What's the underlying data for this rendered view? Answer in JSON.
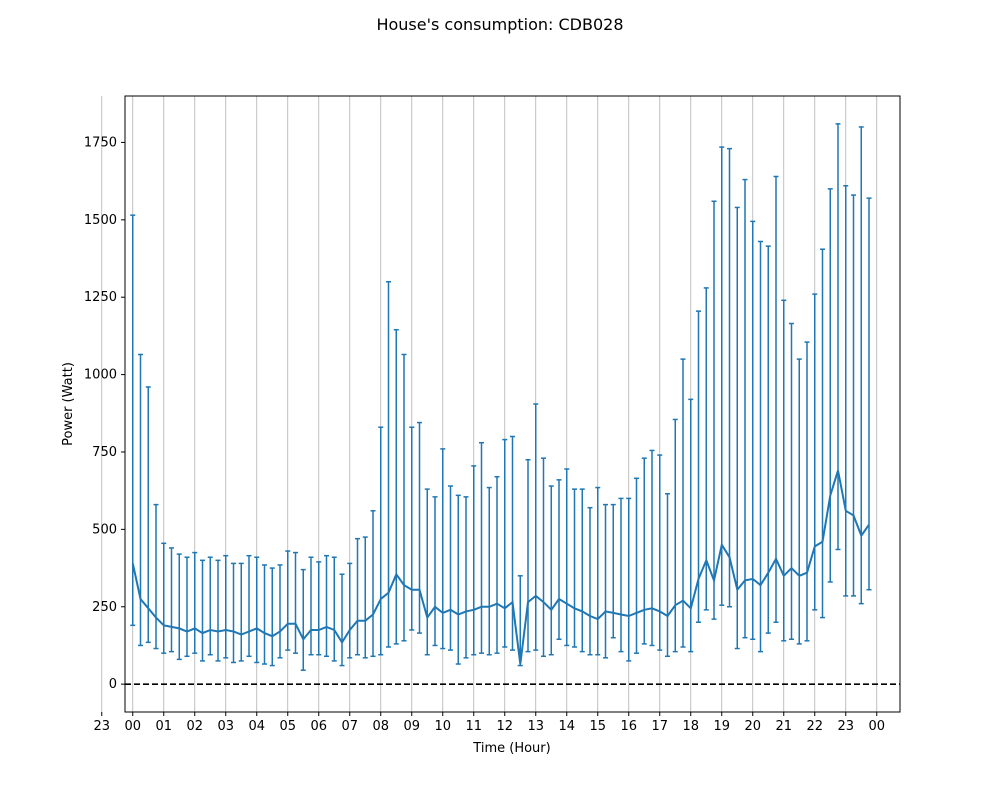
{
  "chart_data": {
    "type": "line",
    "title": "House's consumption: CDB028",
    "xlabel": "Time (Hour)",
    "ylabel": "Power (Watt)",
    "x_tick_labels": [
      "23",
      "00",
      "01",
      "02",
      "03",
      "04",
      "05",
      "06",
      "07",
      "08",
      "09",
      "10",
      "11",
      "12",
      "13",
      "14",
      "15",
      "16",
      "17",
      "18",
      "19",
      "20",
      "21",
      "22",
      "23",
      "00"
    ],
    "y_tick_labels": [
      "0",
      "250",
      "500",
      "750",
      "1000",
      "1250",
      "1500",
      "1750"
    ],
    "y_ticks": [
      0,
      250,
      500,
      750,
      1000,
      1250,
      1500,
      1750
    ],
    "xlim": [
      -0.25,
      24.75
    ],
    "ylim": [
      -90,
      1900
    ],
    "grid": "vertical",
    "reference_line": {
      "y": 0,
      "style": "dashed",
      "color": "#000000"
    },
    "series_color": "#1f77b4",
    "x": [
      0,
      0.25,
      0.5,
      0.75,
      1,
      1.25,
      1.5,
      1.75,
      2,
      2.25,
      2.5,
      2.75,
      3,
      3.25,
      3.5,
      3.75,
      4,
      4.25,
      4.5,
      4.75,
      5,
      5.25,
      5.5,
      5.75,
      6,
      6.25,
      6.5,
      6.75,
      7,
      7.25,
      7.5,
      7.75,
      8,
      8.25,
      8.5,
      8.75,
      9,
      9.25,
      9.5,
      9.75,
      10,
      10.25,
      10.5,
      10.75,
      11,
      11.25,
      11.5,
      11.75,
      12,
      12.25,
      12.5,
      12.75,
      13,
      13.25,
      13.5,
      13.75,
      14,
      14.25,
      14.5,
      14.75,
      15,
      15.25,
      15.5,
      15.75,
      16,
      16.25,
      16.5,
      16.75,
      17,
      17.25,
      17.5,
      17.75,
      18,
      18.25,
      18.5,
      18.75,
      19,
      19.25,
      19.5,
      19.75,
      20,
      20.25,
      20.5,
      20.75,
      21,
      21.25,
      21.5,
      21.75,
      22,
      22.25,
      22.5,
      22.75,
      23,
      23.25,
      23.5,
      23.75
    ],
    "mean": [
      390,
      275,
      245,
      215,
      190,
      185,
      180,
      170,
      180,
      165,
      175,
      170,
      175,
      170,
      160,
      170,
      180,
      165,
      155,
      170,
      195,
      195,
      145,
      175,
      175,
      185,
      175,
      135,
      175,
      205,
      205,
      225,
      275,
      295,
      355,
      320,
      305,
      305,
      215,
      250,
      230,
      240,
      225,
      235,
      240,
      250,
      250,
      260,
      245,
      265,
      65,
      265,
      285,
      265,
      240,
      275,
      260,
      245,
      235,
      220,
      210,
      235,
      230,
      225,
      220,
      230,
      240,
      245,
      235,
      220,
      255,
      270,
      245,
      340,
      400,
      335,
      450,
      410,
      305,
      335,
      340,
      320,
      360,
      405,
      350,
      375,
      350,
      360,
      445,
      460,
      610,
      690,
      560,
      545,
      480,
      515
    ],
    "upper": [
      1515,
      1065,
      960,
      580,
      455,
      440,
      420,
      410,
      425,
      400,
      410,
      400,
      415,
      390,
      390,
      415,
      410,
      385,
      375,
      385,
      430,
      425,
      370,
      410,
      395,
      415,
      410,
      355,
      390,
      470,
      475,
      560,
      830,
      1300,
      1145,
      1065,
      830,
      845,
      630,
      605,
      760,
      640,
      610,
      605,
      705,
      780,
      635,
      670,
      790,
      800,
      350,
      725,
      905,
      730,
      640,
      660,
      695,
      630,
      630,
      570,
      635,
      580,
      580,
      600,
      600,
      665,
      730,
      755,
      740,
      615,
      855,
      1050,
      920,
      1205,
      1280,
      1560,
      1735,
      1730,
      1540,
      1630,
      1495,
      1430,
      1415,
      1640,
      1240,
      1165,
      1050,
      1105,
      1260,
      1405,
      1600,
      1810,
      1610,
      1580,
      1800,
      1570
    ],
    "lower": [
      190,
      125,
      135,
      115,
      100,
      105,
      80,
      90,
      100,
      75,
      95,
      75,
      85,
      70,
      75,
      90,
      70,
      65,
      60,
      85,
      110,
      100,
      45,
      95,
      95,
      90,
      75,
      60,
      85,
      95,
      85,
      90,
      95,
      120,
      130,
      140,
      175,
      165,
      95,
      125,
      115,
      110,
      65,
      85,
      95,
      100,
      95,
      100,
      120,
      110,
      60,
      105,
      110,
      90,
      95,
      145,
      125,
      120,
      105,
      95,
      95,
      85,
      150,
      105,
      75,
      100,
      130,
      125,
      110,
      90,
      105,
      120,
      105,
      200,
      240,
      210,
      255,
      250,
      115,
      150,
      145,
      105,
      165,
      200,
      140,
      145,
      130,
      140,
      240,
      215,
      330,
      435,
      285,
      285,
      260,
      305
    ]
  }
}
